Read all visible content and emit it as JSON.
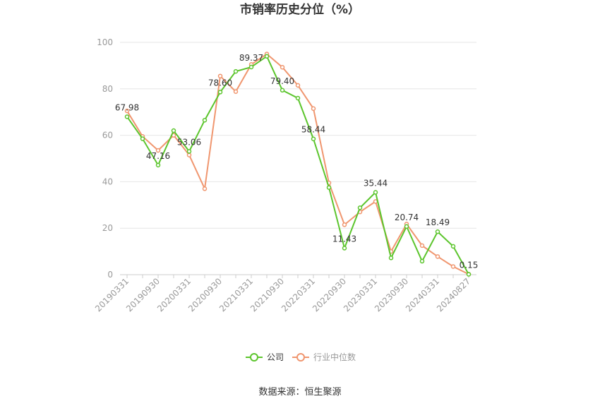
{
  "chart_data": {
    "type": "line",
    "title": "市销率历史分位（%）",
    "xlabel": "",
    "ylabel": "",
    "ylim": [
      0,
      100
    ],
    "yticks": [
      0,
      20,
      40,
      60,
      80,
      100
    ],
    "grid": true,
    "legend_position": "bottom-center",
    "x": [
      "20190331",
      "20190630",
      "20190930",
      "20191231",
      "20200331",
      "20200630",
      "20200930",
      "20201231",
      "20210331",
      "20210630",
      "20210930",
      "20211231",
      "20220331",
      "20220630",
      "20220930",
      "20221231",
      "20230331",
      "20230630",
      "20230930",
      "20231231",
      "20240331",
      "20240630",
      "20240827"
    ],
    "x_tick_labels": [
      "20190331",
      "20190930",
      "20200331",
      "20200930",
      "20210331",
      "20210930",
      "20220331",
      "20220930",
      "20230331",
      "20230930",
      "20240331",
      "20240827"
    ],
    "series": [
      {
        "name": "公司",
        "color": "#5cc52d",
        "values": [
          67.98,
          58.5,
          47.16,
          62.0,
          53.06,
          66.5,
          78.6,
          87.5,
          89.37,
          94.0,
          79.4,
          76.0,
          58.44,
          37.5,
          11.43,
          28.8,
          35.44,
          7.2,
          20.74,
          5.8,
          18.49,
          12.2,
          0.15
        ]
      },
      {
        "name": "行业中位数",
        "color": "#f0966f",
        "values": [
          70.5,
          59.5,
          53.5,
          60.0,
          51.5,
          37.0,
          85.5,
          78.8,
          90.5,
          95.0,
          89.3,
          81.5,
          71.5,
          39.5,
          21.5,
          27.0,
          31.5,
          10.0,
          21.8,
          12.5,
          7.8,
          3.5,
          0.2
        ]
      }
    ],
    "data_labels": [
      {
        "index": 0,
        "text": "67.98"
      },
      {
        "index": 2,
        "text": "47.16"
      },
      {
        "index": 4,
        "text": "53.06"
      },
      {
        "index": 6,
        "text": "78.60"
      },
      {
        "index": 8,
        "text": "89.37"
      },
      {
        "index": 10,
        "text": "79.40"
      },
      {
        "index": 12,
        "text": "58.44"
      },
      {
        "index": 14,
        "text": "11.43"
      },
      {
        "index": 16,
        "text": "35.44"
      },
      {
        "index": 18,
        "text": "20.74"
      },
      {
        "index": 20,
        "text": "18.49"
      },
      {
        "index": 22,
        "text": "0.15"
      }
    ],
    "source": "数据来源：恒生聚源"
  }
}
